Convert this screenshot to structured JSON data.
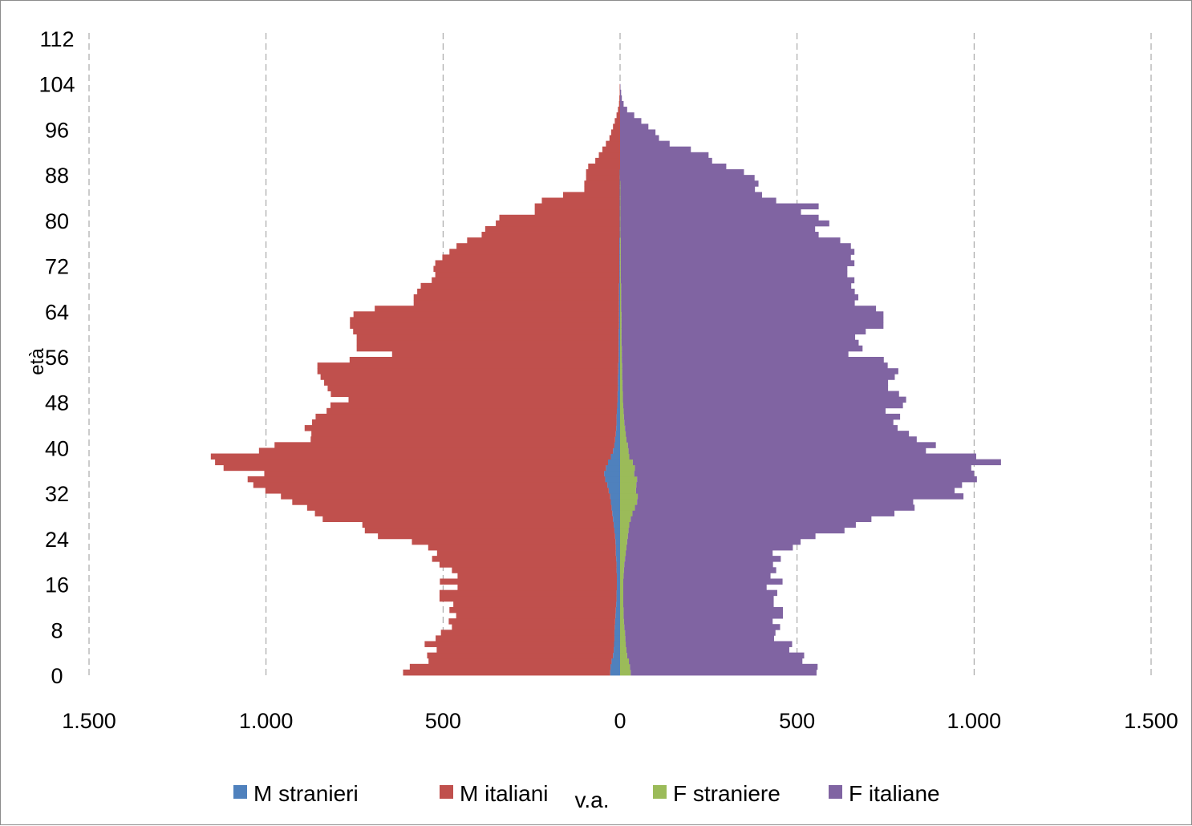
{
  "chart_data": {
    "type": "bar",
    "orientation": "horizontal",
    "layout": "population-pyramid",
    "xlabel": "v.a.",
    "ylabel": "età",
    "xlim": [
      -1500,
      1500
    ],
    "ylim": [
      0,
      112
    ],
    "x_ticks": [
      -1500,
      -1000,
      -500,
      0,
      500,
      1000,
      1500
    ],
    "x_tick_labels": [
      "1.500",
      "1.000",
      "500",
      "0",
      "500",
      "1.000",
      "1.500"
    ],
    "y_ticks": [
      0,
      8,
      16,
      24,
      32,
      40,
      48,
      56,
      64,
      72,
      80,
      88,
      96,
      104,
      112
    ],
    "y_tick_labels": [
      "0",
      "8",
      "16",
      "24",
      "32",
      "40",
      "48",
      "56",
      "64",
      "72",
      "80",
      "88",
      "96",
      "104",
      "112"
    ],
    "grid": "vertical dashed",
    "legend_position": "bottom",
    "ages": [
      0,
      1,
      2,
      3,
      4,
      5,
      6,
      7,
      8,
      9,
      10,
      11,
      12,
      13,
      14,
      15,
      16,
      17,
      18,
      19,
      20,
      21,
      22,
      23,
      24,
      25,
      26,
      27,
      28,
      29,
      30,
      31,
      32,
      33,
      34,
      35,
      36,
      37,
      38,
      39,
      40,
      41,
      42,
      43,
      44,
      45,
      46,
      47,
      48,
      49,
      50,
      51,
      52,
      53,
      54,
      55,
      56,
      57,
      58,
      59,
      60,
      61,
      62,
      63,
      64,
      65,
      66,
      67,
      68,
      69,
      70,
      71,
      72,
      73,
      74,
      75,
      76,
      77,
      78,
      79,
      80,
      81,
      82,
      83,
      84,
      85,
      86,
      87,
      88,
      89,
      90,
      91,
      92,
      93,
      94,
      95,
      96,
      97,
      98,
      99,
      100,
      101,
      102,
      103
    ],
    "series": [
      {
        "name": "M stranieri",
        "side": "left",
        "color": "#4f81bd",
        "values": [
          28,
          27,
          24,
          20,
          18,
          17,
          16,
          16,
          15,
          14,
          13,
          12,
          11,
          10,
          10,
          9,
          9,
          9,
          10,
          10,
          11,
          12,
          12,
          13,
          14,
          16,
          18,
          20,
          22,
          24,
          26,
          28,
          32,
          36,
          42,
          45,
          40,
          34,
          26,
          20,
          16,
          14,
          12,
          11,
          10,
          10,
          9,
          8,
          7,
          7,
          6,
          6,
          6,
          5,
          5,
          4,
          4,
          4,
          4,
          4,
          4,
          3,
          3,
          3,
          3,
          3,
          3,
          3,
          3,
          2,
          2,
          2,
          2,
          2,
          2,
          2,
          2,
          1,
          1,
          1,
          1,
          1,
          1,
          1,
          1,
          1,
          1,
          1,
          1,
          0,
          0,
          0,
          0,
          0,
          0,
          0,
          0,
          0,
          0,
          0,
          0,
          0,
          0,
          0
        ]
      },
      {
        "name": "M italiani",
        "side": "left",
        "color": "#c0504d",
        "values": [
          585,
          567,
          517,
          525,
          500,
          535,
          505,
          490,
          460,
          470,
          450,
          470,
          460,
          500,
          500,
          450,
          500,
          450,
          465,
          500,
          520,
          505,
          530,
          575,
          670,
          705,
          710,
          820,
          840,
          860,
          900,
          930,
          970,
          1000,
          1010,
          960,
          1080,
          1110,
          1130,
          1000,
          960,
          860,
          860,
          880,
          860,
          850,
          820,
          810,
          760,
          810,
          820,
          830,
          840,
          850,
          850,
          760,
          640,
          740,
          740,
          740,
          750,
          760,
          760,
          750,
          690,
          580,
          580,
          570,
          560,
          530,
          520,
          525,
          520,
          500,
          480,
          460,
          430,
          390,
          380,
          350,
          340,
          240,
          240,
          220,
          160,
          100,
          100,
          95,
          95,
          90,
          70,
          60,
          50,
          40,
          30,
          25,
          20,
          15,
          10,
          6,
          3,
          2,
          1,
          1,
          1,
          0
        ]
      },
      {
        "name": "F straniere",
        "side": "right",
        "color": "#9bbb59",
        "values": [
          30,
          28,
          25,
          20,
          18,
          16,
          15,
          14,
          12,
          11,
          10,
          10,
          9,
          9,
          9,
          9,
          9,
          10,
          11,
          12,
          14,
          16,
          18,
          20,
          22,
          24,
          26,
          30,
          35,
          42,
          48,
          50,
          45,
          46,
          48,
          40,
          42,
          36,
          26,
          24,
          22,
          18,
          16,
          14,
          12,
          11,
          10,
          9,
          8,
          8,
          7,
          7,
          6,
          6,
          6,
          5,
          5,
          5,
          4,
          4,
          4,
          4,
          4,
          4,
          3,
          3,
          3,
          3,
          3,
          2,
          2,
          2,
          2,
          2,
          2,
          2,
          2,
          1,
          1,
          1,
          1,
          1,
          1,
          1,
          1,
          1,
          1,
          0,
          0,
          0,
          0,
          0,
          0,
          0,
          0,
          0,
          0,
          0,
          0,
          0,
          0,
          0,
          0,
          0
        ]
      },
      {
        "name": "F italiane",
        "side": "right",
        "color": "#8064a2",
        "values": [
          525,
          530,
          490,
          500,
          460,
          470,
          420,
          425,
          440,
          420,
          450,
          450,
          425,
          425,
          435,
          405,
          450,
          415,
          430,
          420,
          440,
          415,
          470,
          490,
          530,
          610,
          640,
          680,
          740,
          790,
          780,
          920,
          900,
          920,
          960,
          960,
          950,
          1040,
          980,
          840,
          870,
          820,
          800,
          770,
          760,
          780,
          740,
          790,
          800,
          780,
          750,
          750,
          770,
          780,
          750,
          740,
          640,
          680,
          670,
          660,
          690,
          740,
          740,
          740,
          720,
          660,
          670,
          660,
          650,
          660,
          640,
          640,
          660,
          650,
          660,
          650,
          620,
          560,
          550,
          590,
          560,
          510,
          560,
          440,
          400,
          380,
          390,
          380,
          350,
          300,
          260,
          250,
          200,
          140,
          110,
          100,
          80,
          60,
          40,
          20,
          10,
          5,
          3,
          1
        ]
      }
    ],
    "legend": [
      "M stranieri",
      "M italiani",
      "F straniere",
      "F italiane"
    ]
  }
}
